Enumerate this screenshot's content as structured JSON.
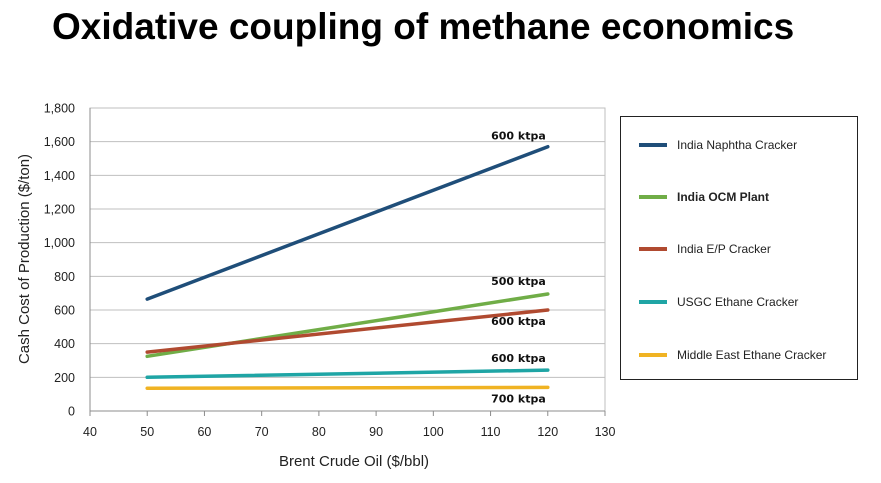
{
  "title": "Oxidative coupling of methane economics",
  "chart_data": {
    "type": "line",
    "title": "Oxidative coupling of methane economics",
    "xlabel": "Brent Crude Oil ($/bbl)",
    "ylabel": "Cash Cost of Production ($/ton)",
    "xlim": [
      40,
      130
    ],
    "ylim": [
      0,
      1800
    ],
    "x_ticks": [
      "40",
      "50",
      "60",
      "70",
      "80",
      "90",
      "100",
      "110",
      "120",
      "130"
    ],
    "y_ticks": [
      "0",
      "200",
      "400",
      "600",
      "800",
      "1,000",
      "1,200",
      "1,400",
      "1,600",
      "1,800"
    ],
    "grid": "horizontal",
    "legend_position": "right",
    "series": [
      {
        "name": "India Naphtha Cracker",
        "color": "#1f4e79",
        "x": [
          50,
          120
        ],
        "y": [
          665,
          1570
        ],
        "label": "600 ktpa",
        "bold": false
      },
      {
        "name": "India OCM Plant",
        "color": "#70ad47",
        "x": [
          50,
          120
        ],
        "y": [
          325,
          695
        ],
        "label": "500 ktpa",
        "bold": true
      },
      {
        "name": "India E/P Cracker",
        "color": "#b04a30",
        "x": [
          50,
          120
        ],
        "y": [
          350,
          600
        ],
        "label": "600 ktpa",
        "bold": false
      },
      {
        "name": "USGC Ethane Cracker",
        "color": "#1fa5a5",
        "x": [
          50,
          120
        ],
        "y": [
          200,
          243
        ],
        "label": "600 ktpa",
        "bold": false
      },
      {
        "name": "Middle East Ethane Cracker",
        "color": "#f0b323",
        "x": [
          50,
          120
        ],
        "y": [
          135,
          140
        ],
        "label": "700 ktpa",
        "bold": false
      }
    ]
  }
}
